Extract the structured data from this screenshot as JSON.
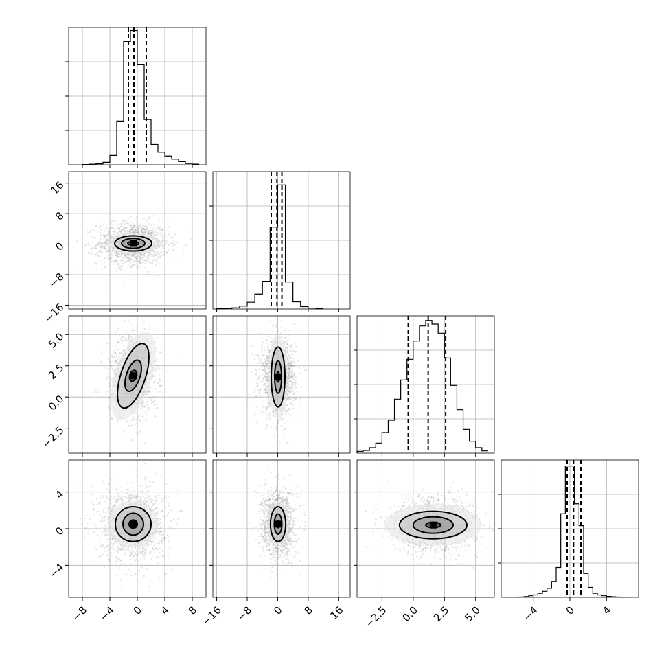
{
  "chart_data": {
    "type": "corner",
    "title": "",
    "parameters": [
      {
        "range": [
          -10,
          10
        ],
        "ticks": [
          -8,
          -4,
          0,
          4,
          8
        ],
        "tick_labels": [
          "−8",
          "−4",
          "0",
          "4",
          "8"
        ]
      },
      {
        "range": [
          -17,
          19
        ],
        "ticks": [
          -16,
          -8,
          0,
          8,
          16
        ],
        "tick_labels": [
          "−16",
          "−8",
          "0",
          "8",
          "16"
        ]
      },
      {
        "range": [
          -4.5,
          6.5
        ],
        "ticks": [
          -2.5,
          0,
          2.5,
          5
        ],
        "tick_labels": [
          "−2.5",
          "0.0",
          "2.5",
          "5.0"
        ]
      },
      {
        "range": [
          -7.5,
          7.5
        ],
        "ticks": [
          -4,
          0,
          4
        ],
        "tick_labels": [
          "−4",
          "0",
          "4"
        ]
      }
    ],
    "histograms": [
      {
        "param": 0,
        "edges": [
          -8,
          -7,
          -6,
          -5,
          -4,
          -3,
          -2,
          -1,
          0,
          1,
          2,
          3,
          4,
          5,
          6,
          7,
          8,
          9
        ],
        "counts": [
          1,
          2,
          3,
          8,
          30,
          140,
          395,
          430,
          322,
          145,
          65,
          40,
          28,
          18,
          10,
          4,
          2
        ],
        "y_max": 440,
        "quantiles": [
          -1.3,
          -0.5,
          1.3
        ]
      },
      {
        "param": 1,
        "edges": [
          -16,
          -14,
          -12,
          -10,
          -8,
          -6,
          -4,
          -2,
          0,
          2,
          4,
          6,
          8,
          10,
          12
        ],
        "counts": [
          1,
          2,
          5,
          12,
          28,
          62,
          115,
          340,
          515,
          112,
          30,
          10,
          4,
          1
        ],
        "y_max": 570,
        "quantiles": [
          -1.7,
          -0.2,
          1.1
        ]
      },
      {
        "param": 2,
        "edges": [
          -4.5,
          -4,
          -3.5,
          -3,
          -2.5,
          -2,
          -1.5,
          -1,
          -0.5,
          0,
          0.5,
          1,
          1.5,
          2,
          2.5,
          3,
          3.5,
          4,
          4.5,
          5,
          5.5,
          6
        ],
        "counts": [
          4,
          6,
          12,
          22,
          45,
          72,
          118,
          160,
          205,
          245,
          278,
          290,
          282,
          262,
          208,
          148,
          95,
          52,
          26,
          12,
          5
        ],
        "y_max": 300,
        "quantiles": [
          -0.4,
          1.2,
          2.6
        ]
      },
      {
        "param": 3,
        "edges": [
          -6,
          -5.5,
          -5,
          -4.5,
          -4,
          -3.5,
          -3,
          -2.5,
          -2,
          -1.5,
          -1,
          -0.5,
          0,
          0.5,
          1,
          1.5,
          2,
          2.5,
          3,
          3.5,
          4,
          4.5,
          5,
          5.5,
          6,
          6.5
        ],
        "counts": [
          1,
          2,
          4,
          8,
          12,
          20,
          30,
          45,
          80,
          150,
          420,
          660,
          660,
          470,
          360,
          120,
          50,
          20,
          12,
          8,
          5,
          3,
          2,
          1,
          1
        ],
        "y_max": 690,
        "quantiles": [
          -0.3,
          0.4,
          1.2
        ]
      }
    ],
    "pairs": [
      {
        "x": 0,
        "y": 1,
        "center": [
          -0.6,
          0.2
        ],
        "std": [
          2.6,
          2.8
        ],
        "tilt_deg": 0,
        "contours": [
          [
            0.8,
            0.5
          ],
          [
            1.7,
            1.3
          ],
          [
            2.7,
            2.0
          ],
          [
            3.9,
            2.8
          ]
        ]
      },
      {
        "x": 0,
        "y": 2,
        "center": [
          -0.6,
          1.7
        ],
        "std": [
          1.6,
          1.6
        ],
        "tilt_deg": -18,
        "contours": [
          [
            0.5,
            0.45
          ],
          [
            1.0,
            1.3
          ],
          [
            1.8,
            2.7
          ],
          [
            2.7,
            3.7
          ]
        ]
      },
      {
        "x": 1,
        "y": 2,
        "center": [
          0.1,
          1.6
        ],
        "std": [
          2.3,
          1.5
        ],
        "tilt_deg": 0,
        "contours": [
          [
            0.4,
            0.4
          ],
          [
            0.9,
            1.3
          ],
          [
            1.8,
            2.4
          ],
          [
            2.7,
            3.4
          ]
        ]
      },
      {
        "x": 0,
        "y": 3,
        "center": [
          -0.6,
          0.5
        ],
        "std": [
          2.4,
          2.0
        ],
        "tilt_deg": 0,
        "contours": [
          [
            0.6,
            0.45
          ],
          [
            1.5,
            1.2
          ],
          [
            2.6,
            1.9
          ],
          [
            3.7,
            2.6
          ]
        ]
      },
      {
        "x": 1,
        "y": 3,
        "center": [
          0.1,
          0.5
        ],
        "std": [
          2.2,
          1.9
        ],
        "tilt_deg": 0,
        "contours": [
          [
            0.4,
            0.4
          ],
          [
            1.0,
            1.1
          ],
          [
            2.0,
            1.9
          ],
          [
            2.9,
            2.6
          ]
        ]
      },
      {
        "x": 2,
        "y": 3,
        "center": [
          1.6,
          0.4
        ],
        "std": [
          1.7,
          1.5
        ],
        "tilt_deg": 0,
        "contours": [
          [
            0.6,
            0.3
          ],
          [
            1.6,
            0.9
          ],
          [
            2.7,
            1.5
          ],
          [
            3.9,
            2.3
          ]
        ]
      }
    ]
  }
}
